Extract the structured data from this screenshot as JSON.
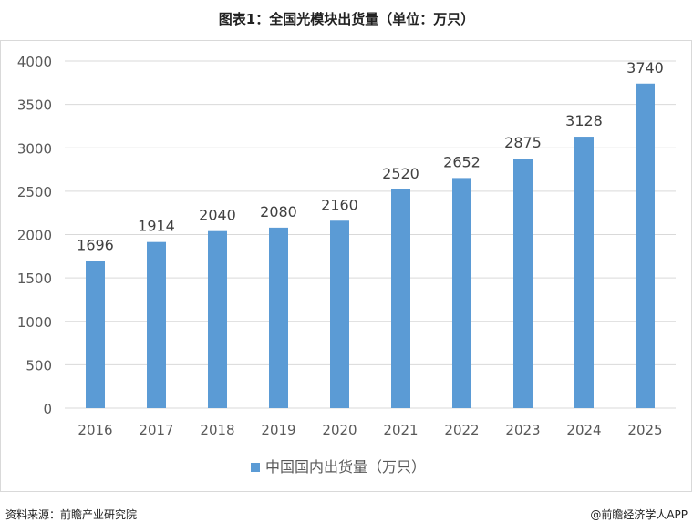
{
  "header": {
    "title": "图表1：全国光模块出货量（单位：万只）"
  },
  "footer": {
    "source": "资料来源：前瞻产业研究院",
    "brand": "@前瞻经济学人APP"
  },
  "chart_data": {
    "type": "bar",
    "categories": [
      "2016",
      "2017",
      "2018",
      "2019",
      "2020",
      "2021",
      "2022",
      "2023",
      "2024",
      "2025"
    ],
    "series": [
      {
        "name": "中国国内出货量（万只）",
        "values": [
          1696,
          1914,
          2040,
          2080,
          2160,
          2520,
          2652,
          2875,
          3128,
          3740
        ]
      }
    ],
    "ylim": [
      0,
      4000
    ],
    "yticks": [
      0,
      500,
      1000,
      1500,
      2000,
      2500,
      3000,
      3500,
      4000
    ],
    "grid": true,
    "legend_position": "bottom",
    "bar_color": "#5B9BD5",
    "data_labels": true
  }
}
